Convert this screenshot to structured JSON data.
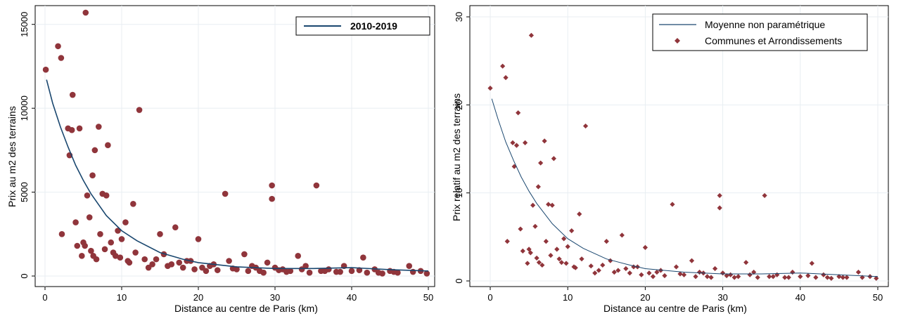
{
  "chart_data": [
    {
      "type": "scatter",
      "xlabel": "Distance au centre de Paris (km)",
      "ylabel": "Prix au m2 des terrains",
      "xlim": [
        0,
        50
      ],
      "ylim": [
        0,
        16000
      ],
      "xticks": [
        0,
        10,
        20,
        30,
        40,
        50
      ],
      "yticks": [
        0,
        5000,
        10000,
        15000
      ],
      "grid": true,
      "legend_position": "top-right",
      "colors": {
        "line": "#1a476f",
        "points": "#90353b"
      },
      "series": [
        {
          "name": "2010-2019",
          "kind": "line",
          "x": [
            0.2,
            1,
            2,
            3,
            4,
            5,
            6,
            8,
            10,
            12,
            15,
            18,
            20,
            25,
            30,
            35,
            40,
            45,
            50
          ],
          "y": [
            11700,
            10300,
            8900,
            7700,
            6600,
            5700,
            4900,
            3600,
            2700,
            2100,
            1400,
            1000,
            800,
            550,
            450,
            450,
            500,
            380,
            300
          ]
        },
        {
          "kind": "scatter",
          "x": [
            0.1,
            1.7,
            2.1,
            2.2,
            3.0,
            3.2,
            3.5,
            3.6,
            4.0,
            4.2,
            4.5,
            4.8,
            5.0,
            5.3,
            5.5,
            5.8,
            6.0,
            6.2,
            6.5,
            6.7,
            7.0,
            7.2,
            7.5,
            8.0,
            8.2,
            8.6,
            8.9,
            9.2,
            9.5,
            10.0,
            10.5,
            11.0,
            11.5,
            12.3,
            13.0,
            14.0,
            15.0,
            15.5,
            16.0,
            17.0,
            17.5,
            18.0,
            19.0,
            20.0,
            20.5,
            21.0,
            22.0,
            23.5,
            24.0,
            25.0,
            26.0,
            27.0,
            28.0,
            29.0,
            29.6,
            29.6,
            30.0,
            31.0,
            32.0,
            33.0,
            34.0,
            35.4,
            36.0,
            37.0,
            38.0,
            39.0,
            40.0,
            41.5,
            42.0,
            43.0,
            44.0,
            45.0,
            46.0,
            47.5,
            48.0,
            49.0,
            49.8,
            5.2,
            6.3,
            7.8,
            9.8,
            10.8,
            11.8,
            13.5,
            14.5,
            16.5,
            18.5,
            19.5,
            21.5,
            22.5,
            24.5,
            26.5,
            27.5,
            28.5,
            30.5,
            31.5,
            33.5,
            34.5,
            36.5,
            38.5,
            41.0,
            43.5,
            45.5
          ],
          "y": [
            12300,
            13700,
            13000,
            2500,
            8800,
            7200,
            8700,
            10800,
            3200,
            1800,
            8800,
            1200,
            2000,
            15700,
            4800,
            3500,
            1500,
            6000,
            7500,
            1000,
            8900,
            2500,
            4900,
            4800,
            7800,
            2000,
            1400,
            1200,
            2700,
            2200,
            3200,
            800,
            4300,
            9900,
            1000,
            700,
            2500,
            1300,
            600,
            2900,
            800,
            500,
            900,
            2200,
            500,
            300,
            700,
            4900,
            900,
            400,
            1300,
            600,
            300,
            800,
            5400,
            4600,
            500,
            400,
            300,
            1200,
            600,
            5400,
            300,
            400,
            250,
            600,
            300,
            1100,
            200,
            400,
            150,
            300,
            200,
            600,
            250,
            300,
            150,
            1800,
            1200,
            1600,
            1100,
            900,
            1400,
            500,
            1000,
            700,
            900,
            400,
            600,
            350,
            450,
            300,
            500,
            200,
            350,
            250,
            400,
            200,
            300,
            250,
            350,
            200,
            250
          ]
        }
      ]
    },
    {
      "type": "scatter",
      "xlabel": "Distance au centre de Paris (km)",
      "ylabel": "Prix relatif au m2 des terrains",
      "xlim": [
        0,
        50
      ],
      "ylim": [
        0,
        30
      ],
      "xticks": [
        0,
        10,
        20,
        30,
        40,
        50
      ],
      "yticks": [
        0,
        10,
        20,
        30
      ],
      "grid": true,
      "legend_position": "top-right",
      "colors": {
        "line": "#1a476f",
        "points": "#90353b"
      },
      "series": [
        {
          "name": "Moyenne non paramétrique",
          "kind": "line",
          "x": [
            0.2,
            1,
            2,
            3,
            4,
            5,
            6,
            8,
            10,
            12,
            15,
            18,
            20,
            25,
            30,
            35,
            40,
            45,
            50
          ],
          "y": [
            20.7,
            18.4,
            15.8,
            13.7,
            11.8,
            10.2,
            8.8,
            6.5,
            4.8,
            3.7,
            2.5,
            1.8,
            1.4,
            1.0,
            0.8,
            0.8,
            0.9,
            0.7,
            0.5
          ]
        },
        {
          "name": "Communes et Arrondissements",
          "kind": "scatter",
          "marker": "diamond",
          "x": [
            0.0,
            1.6,
            2.0,
            2.2,
            2.9,
            3.1,
            3.4,
            3.6,
            3.9,
            4.2,
            4.5,
            4.8,
            5.0,
            5.3,
            5.5,
            5.8,
            6.0,
            6.2,
            6.5,
            6.7,
            7.0,
            7.2,
            7.5,
            8.0,
            8.2,
            8.6,
            8.9,
            9.2,
            9.5,
            10.0,
            10.5,
            11.0,
            11.5,
            12.3,
            13.0,
            14.0,
            15.0,
            15.5,
            16.0,
            17.0,
            17.5,
            18.0,
            19.0,
            20.0,
            20.5,
            21.0,
            22.0,
            23.5,
            24.0,
            25.0,
            26.0,
            27.0,
            28.0,
            29.0,
            29.6,
            29.6,
            30.0,
            31.0,
            32.0,
            33.0,
            34.0,
            35.4,
            36.0,
            37.0,
            38.0,
            39.0,
            40.0,
            41.5,
            42.0,
            43.0,
            44.0,
            45.0,
            46.0,
            47.5,
            48.0,
            49.0,
            49.8,
            5.2,
            6.3,
            7.8,
            9.8,
            10.8,
            11.8,
            13.5,
            14.5,
            16.5,
            18.5,
            19.5,
            21.5,
            22.5,
            24.5,
            26.5,
            27.5,
            28.5,
            30.5,
            31.5,
            33.5,
            34.5,
            36.5,
            38.5,
            41.0,
            43.5,
            45.5
          ],
          "y": [
            21.9,
            24.4,
            23.1,
            4.5,
            15.7,
            13.0,
            15.4,
            19.1,
            5.9,
            3.4,
            15.7,
            2.0,
            3.6,
            27.9,
            8.6,
            6.2,
            2.6,
            10.7,
            13.4,
            1.8,
            15.9,
            4.5,
            8.7,
            8.6,
            13.9,
            3.6,
            2.5,
            2.1,
            4.8,
            3.9,
            5.7,
            1.5,
            7.6,
            17.6,
            1.7,
            1.2,
            4.5,
            2.3,
            1.0,
            5.2,
            1.4,
            0.9,
            1.6,
            3.8,
            0.9,
            0.5,
            1.2,
            8.7,
            1.6,
            0.7,
            2.3,
            1.0,
            0.5,
            1.4,
            9.7,
            8.3,
            0.9,
            0.7,
            0.5,
            2.1,
            1.0,
            9.7,
            0.5,
            0.7,
            0.4,
            1.0,
            0.5,
            2.0,
            0.4,
            0.7,
            0.3,
            0.5,
            0.4,
            1.0,
            0.4,
            0.5,
            0.3,
            3.2,
            2.1,
            2.9,
            2.0,
            1.6,
            2.5,
            0.9,
            1.8,
            1.2,
            1.6,
            0.7,
            1.0,
            0.6,
            0.8,
            0.5,
            0.9,
            0.4,
            0.6,
            0.4,
            0.7,
            0.4,
            0.5,
            0.4,
            0.6,
            0.4,
            0.4
          ]
        }
      ]
    }
  ]
}
